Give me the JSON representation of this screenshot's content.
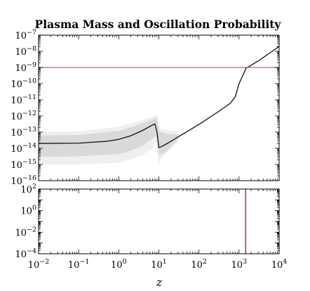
{
  "chart_data": [
    {
      "type": "line",
      "title": "Plasma Mass and Oscillation Probability",
      "xscale": "log",
      "yscale": "log",
      "xlim": [
        0.01,
        10000
      ],
      "ylim": [
        1e-16,
        1e-07
      ],
      "x_ticks": [
        {
          "base": "10",
          "exp": "−2",
          "value": 0.01
        },
        {
          "base": "10",
          "exp": "−1",
          "value": 0.1
        },
        {
          "base": "10",
          "exp": "0",
          "value": 1
        },
        {
          "base": "10",
          "exp": "1",
          "value": 10
        },
        {
          "base": "10",
          "exp": "2",
          "value": 100
        },
        {
          "base": "10",
          "exp": "3",
          "value": 1000
        },
        {
          "base": "10",
          "exp": "4",
          "value": 10000
        }
      ],
      "y_ticks": [
        {
          "base": "10",
          "exp": "−7",
          "value": 1e-07
        },
        {
          "base": "10",
          "exp": "−8",
          "value": 1e-08
        },
        {
          "base": "10",
          "exp": "−9",
          "value": 1e-09
        },
        {
          "base": "10",
          "exp": "−10",
          "value": 1e-10
        },
        {
          "base": "10",
          "exp": "−11",
          "value": 1e-11
        },
        {
          "base": "10",
          "exp": "−12",
          "value": 1e-12
        },
        {
          "base": "10",
          "exp": "−13",
          "value": 1e-13
        },
        {
          "base": "10",
          "exp": "−14",
          "value": 1e-14
        },
        {
          "base": "10",
          "exp": "−15",
          "value": 1e-15
        },
        {
          "base": "10",
          "exp": "−16",
          "value": 1e-16
        }
      ],
      "series": [
        {
          "color": "#111111",
          "x": [
            0.01,
            0.1,
            0.5,
            1,
            2,
            4,
            7,
            8,
            9,
            10,
            11,
            15,
            30,
            100,
            300,
            600,
            800,
            1000,
            1500,
            3000,
            10000
          ],
          "y": [
            2e-14,
            2.1e-14,
            2.7e-14,
            3.6e-14,
            6e-14,
            1.3e-13,
            2.8e-13,
            3.2e-13,
            1e-13,
            1.1e-14,
            1.2e-14,
            1.8e-14,
            5e-14,
            3e-13,
            1.8e-12,
            6e-12,
            1.5e-11,
            1e-10,
            9e-10,
            2.5e-09,
            2e-08
          ]
        },
        {
          "color": "#c06060",
          "x": [
            0.01,
            10000
          ],
          "y": [
            1e-09,
            1e-09
          ]
        }
      ],
      "bands": [
        {
          "color": "#efefef",
          "x": [
            0.01,
            0.1,
            1,
            2,
            4,
            7,
            8,
            8.5,
            9,
            9.5,
            10,
            11,
            15,
            30
          ],
          "lower": [
            1e-15,
            1e-15,
            1.3e-15,
            2e-15,
            4e-15,
            1e-14,
            2.3e-14,
            2.5e-14,
            1.5e-14,
            1e-15,
            1.3e-15,
            2e-15,
            5e-15,
            2.5e-14
          ],
          "upper": [
            1.1e-13,
            1.1e-13,
            2.2e-13,
            3.4e-13,
            5.7e-13,
            9e-13,
            1.1e-12,
            1.2e-12,
            1.2e-12,
            2.5e-13,
            2.2e-13,
            1.7e-13,
            1.3e-13,
            1.2e-13
          ]
        },
        {
          "color": "#d9d9d9",
          "x": [
            0.01,
            0.1,
            1,
            2,
            4,
            7,
            8,
            9,
            10,
            11,
            15,
            30
          ],
          "lower": [
            3e-15,
            3.2e-15,
            4.3e-15,
            7e-15,
            1.5e-14,
            4e-14,
            6e-14,
            4e-14,
            4e-15,
            4e-15,
            6e-15,
            3.7e-14
          ],
          "upper": [
            6.2e-14,
            6.6e-14,
            1.2e-13,
            2e-13,
            3.6e-13,
            6e-13,
            7e-13,
            7.5e-13,
            1.2e-13,
            1e-13,
            8e-14,
            7e-14
          ]
        }
      ]
    },
    {
      "type": "line",
      "xscale": "log",
      "yscale": "log",
      "xlim": [
        0.01,
        10000
      ],
      "ylim": [
        0.0001,
        100
      ],
      "xlabel": "z",
      "y_ticks": [
        {
          "base": "10",
          "exp": "2",
          "value": 100
        },
        {
          "base": "10",
          "exp": "0",
          "value": 1
        },
        {
          "base": "10",
          "exp": "−2",
          "value": 0.01
        },
        {
          "base": "10",
          "exp": "−4",
          "value": 0.0001
        }
      ],
      "series": [
        {
          "color": "#c0504d",
          "x": [
            1460,
            1460
          ],
          "y": [
            0.0001,
            100
          ]
        }
      ]
    }
  ]
}
